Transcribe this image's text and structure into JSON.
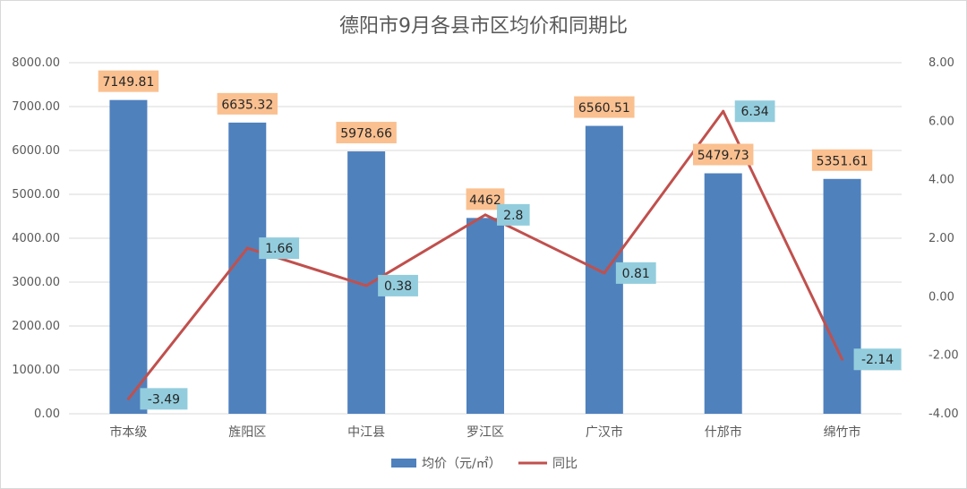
{
  "chart_data": {
    "type": "bar+line",
    "title": "德阳市9月各县市区均价和同期比",
    "categories": [
      "市本级",
      "旌阳区",
      "中江县",
      "罗江区",
      "广汉市",
      "什邡市",
      "绵竹市"
    ],
    "series": [
      {
        "name": "均价（元/㎡）",
        "type": "bar",
        "axis": "left",
        "color": "#4f81bd",
        "values": [
          7149.81,
          6635.32,
          5978.66,
          4462,
          6560.51,
          5479.73,
          5351.61
        ],
        "labels": [
          "7149.81",
          "6635.32",
          "5978.66",
          "4462",
          "6560.51",
          "5479.73",
          "5351.61"
        ],
        "label_color": "#fac090"
      },
      {
        "name": "同比",
        "type": "line",
        "axis": "right",
        "color": "#c0504d",
        "values": [
          -3.49,
          1.66,
          0.38,
          2.8,
          0.81,
          6.34,
          -2.14
        ],
        "labels": [
          "-3.49",
          "1.66",
          "0.38",
          "2.8",
          "0.81",
          "6.34",
          "-2.14"
        ],
        "label_color": "#93cddd"
      }
    ],
    "y_left": {
      "range": [
        0,
        8000
      ],
      "ticks": [
        "0.00",
        "1000.00",
        "2000.00",
        "3000.00",
        "4000.00",
        "5000.00",
        "6000.00",
        "7000.00",
        "8000.00"
      ]
    },
    "y_right": {
      "range": [
        -4,
        8
      ],
      "ticks": [
        "-4.00",
        "-2.00",
        "0.00",
        "2.00",
        "4.00",
        "6.00",
        "8.00"
      ]
    },
    "grid": true,
    "legend_position": "bottom-center"
  }
}
